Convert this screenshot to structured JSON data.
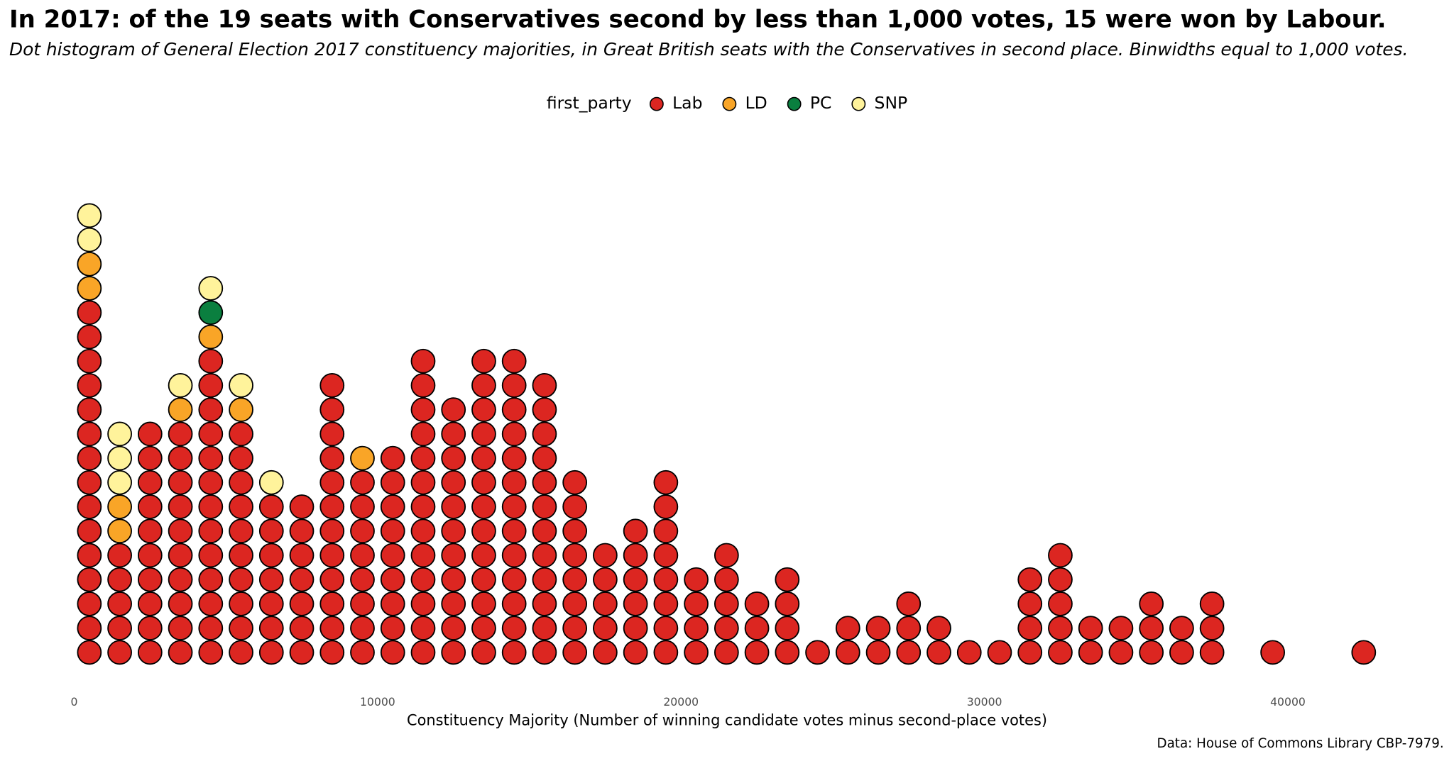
{
  "chart_data": {
    "type": "dot_histogram",
    "title": "In 2017: of the 19 seats with Conservatives second by less than 1,000 votes, 15 were won by Labour.",
    "subtitle": "Dot histogram of General Election 2017 constituency majorities, in Great British seats with the Conservatives in second place. Binwidths equal to 1,000 votes.",
    "x_label": "Constituency Majority (Number of winning candidate votes minus second-place votes)",
    "caption": "Data: House of Commons Library CBP-7979.",
    "legend_title": "first_party",
    "legend_position": "top",
    "bins": [
      0,
      1000,
      2000,
      3000,
      4000,
      5000,
      6000,
      7000,
      8000,
      9000,
      10000,
      11000,
      12000,
      13000,
      14000,
      15000,
      16000,
      17000,
      18000,
      19000,
      20000,
      21000,
      22000,
      23000,
      24000,
      25000,
      26000,
      27000,
      28000,
      29000,
      30000,
      31000,
      32000,
      33000,
      34000,
      35000,
      36000,
      37000,
      38000,
      39000,
      40000,
      41000,
      42000,
      43000
    ],
    "series": [
      {
        "name": "Lab",
        "color": "#dc2621",
        "values": [
          15,
          5,
          10,
          10,
          13,
          10,
          7,
          7,
          12,
          8,
          9,
          13,
          11,
          13,
          13,
          12,
          8,
          5,
          6,
          8,
          4,
          5,
          3,
          4,
          1,
          2,
          2,
          3,
          2,
          1,
          1,
          4,
          5,
          2,
          2,
          3,
          2,
          3,
          0,
          1,
          0,
          0,
          1
        ]
      },
      {
        "name": "LD",
        "color": "#f9a527",
        "values": [
          2,
          2,
          0,
          1,
          1,
          1,
          0,
          0,
          0,
          1,
          0,
          0,
          0,
          0,
          0,
          0,
          0,
          0,
          0,
          0,
          0,
          0,
          0,
          0,
          0,
          0,
          0,
          0,
          0,
          0,
          0,
          0,
          0,
          0,
          0,
          0,
          0,
          0,
          0,
          0,
          0,
          0,
          0
        ]
      },
      {
        "name": "PC",
        "color": "#0a7f3f",
        "values": [
          0,
          0,
          0,
          0,
          1,
          0,
          0,
          0,
          0,
          0,
          0,
          0,
          0,
          0,
          0,
          0,
          0,
          0,
          0,
          0,
          0,
          0,
          0,
          0,
          0,
          0,
          0,
          0,
          0,
          0,
          0,
          0,
          0,
          0,
          0,
          0,
          0,
          0,
          0,
          0,
          0,
          0,
          0
        ]
      },
      {
        "name": "SNP",
        "color": "#fff39b",
        "values": [
          2,
          3,
          0,
          1,
          1,
          1,
          1,
          0,
          0,
          0,
          0,
          0,
          0,
          0,
          0,
          0,
          0,
          0,
          0,
          0,
          0,
          0,
          0,
          0,
          0,
          0,
          0,
          0,
          0,
          0,
          0,
          0,
          0,
          0,
          0,
          0,
          0,
          0,
          0,
          0,
          0,
          0,
          0
        ]
      }
    ],
    "xlim": [
      0,
      43000
    ],
    "xticks": [
      0,
      10000,
      20000,
      30000,
      40000
    ],
    "grid": false
  }
}
